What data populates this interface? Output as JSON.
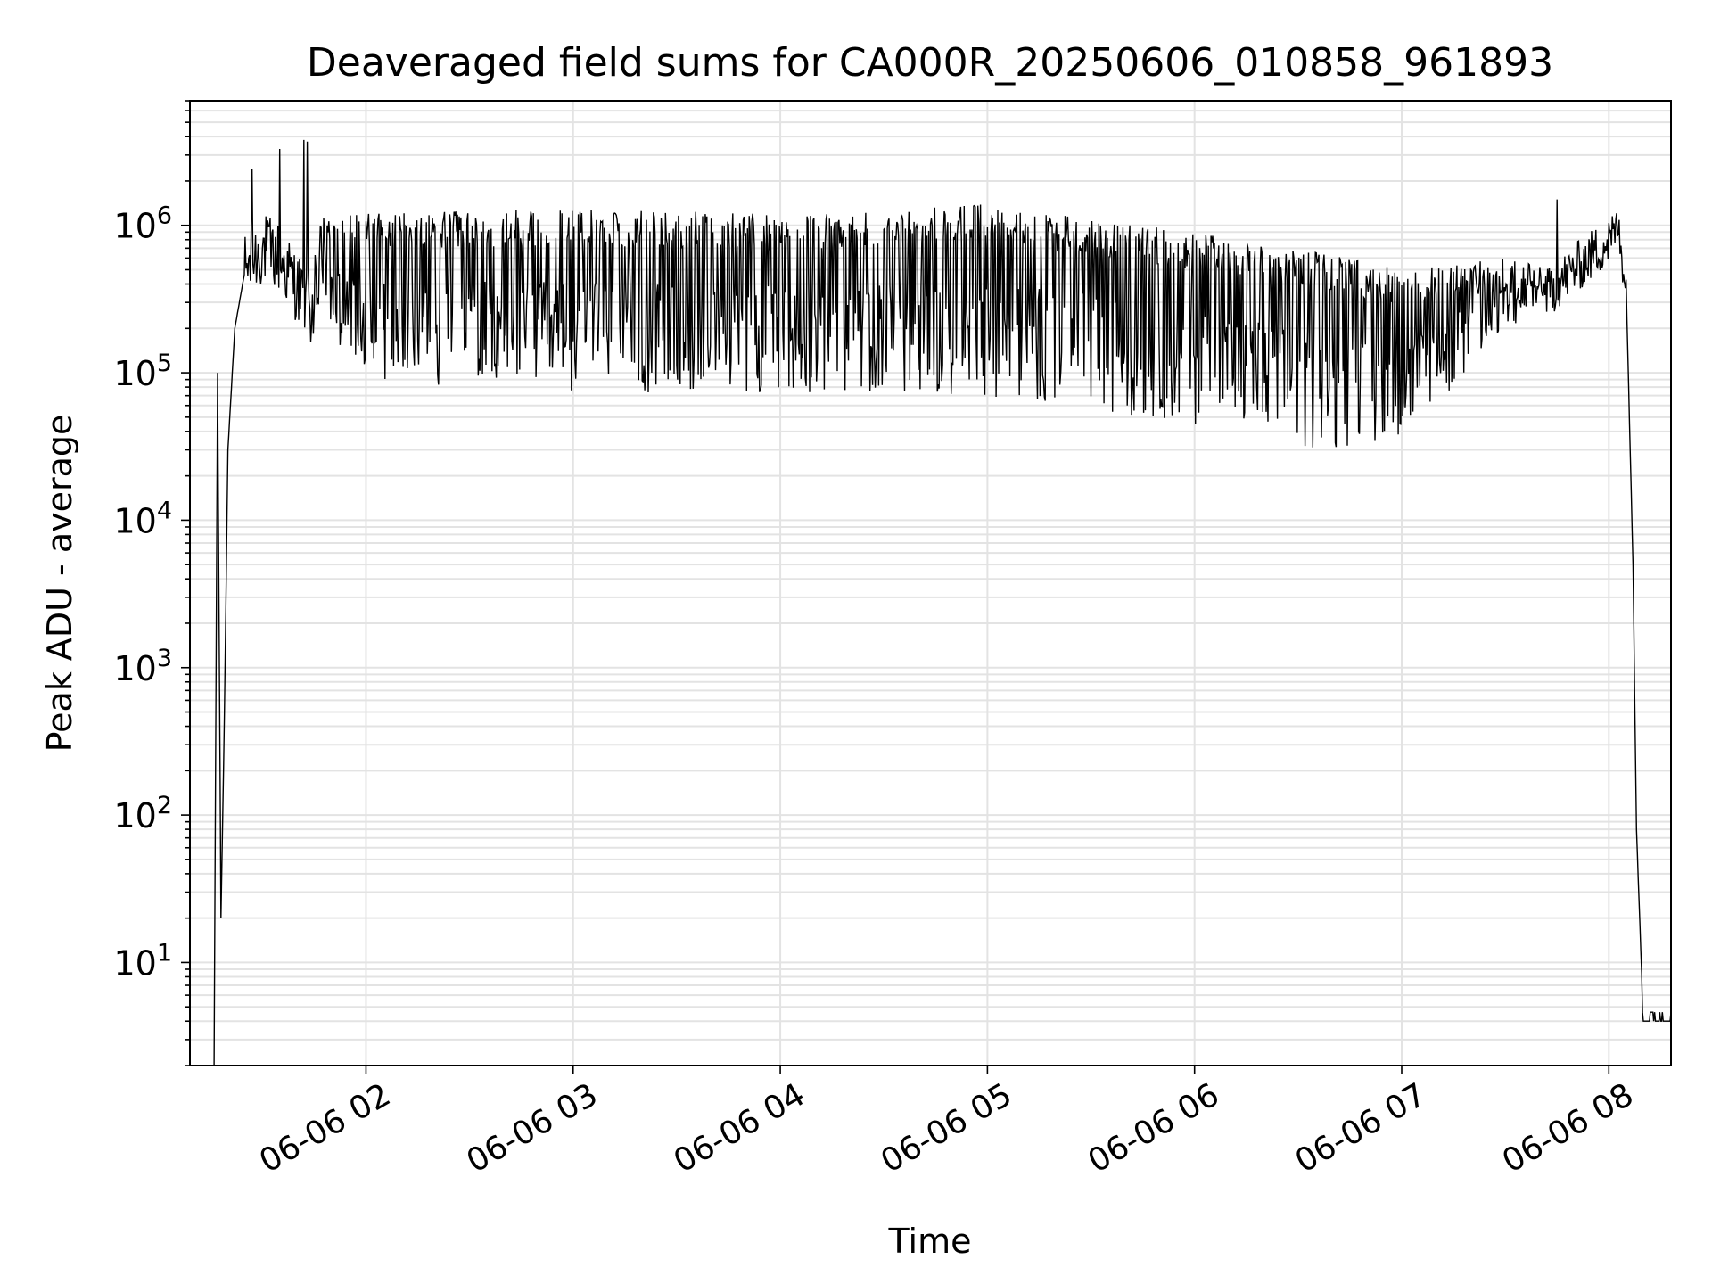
{
  "chart_data": {
    "type": "line",
    "title": "Deaveraged field sums for CA000R_20250606_010858_961893",
    "xlabel": "Time",
    "ylabel": "Peak ADU - average",
    "yscale": "log",
    "grid": true,
    "legend": "none",
    "line_color": "#000000",
    "xlim": [
      "2025-06-06 01:09",
      "2025-06-06 08:18"
    ],
    "ylim": [
      2.0,
      7000000
    ],
    "x_ticks": [
      {
        "t": "2025-06-06 02:00",
        "label": "06-06 02"
      },
      {
        "t": "2025-06-06 03:00",
        "label": "06-06 03"
      },
      {
        "t": "2025-06-06 04:00",
        "label": "06-06 04"
      },
      {
        "t": "2025-06-06 05:00",
        "label": "06-06 05"
      },
      {
        "t": "2025-06-06 06:00",
        "label": "06-06 06"
      },
      {
        "t": "2025-06-06 07:00",
        "label": "06-06 07"
      },
      {
        "t": "2025-06-06 08:00",
        "label": "06-06 08"
      }
    ],
    "y_ticks": [
      {
        "value": 10,
        "base": "10",
        "exp": "1"
      },
      {
        "value": 100,
        "base": "10",
        "exp": "2"
      },
      {
        "value": 1000,
        "base": "10",
        "exp": "3"
      },
      {
        "value": 10000,
        "base": "10",
        "exp": "4"
      },
      {
        "value": 100000,
        "base": "10",
        "exp": "5"
      },
      {
        "value": 1000000,
        "base": "10",
        "exp": "6"
      }
    ],
    "series": [
      {
        "baseline": [
          {
            "t": "2025-06-06 01:17",
            "v": 100000
          },
          {
            "t": "2025-06-06 01:18",
            "v": 20
          },
          {
            "t": "2025-06-06 01:19",
            "v": 500
          },
          {
            "t": "2025-06-06 01:20",
            "v": 30000
          },
          {
            "t": "2025-06-06 01:22",
            "v": 200000
          },
          {
            "t": "2025-06-06 01:25",
            "v": 500000
          },
          {
            "t": "2025-06-06 01:30",
            "v": 700000
          },
          {
            "t": "2025-06-06 01:35",
            "v": 600000
          },
          {
            "t": "2025-06-06 01:45",
            "v": 250000
          },
          {
            "t": "2025-06-06 02:00",
            "v": 90000
          },
          {
            "t": "2025-06-06 02:30",
            "v": 80000
          },
          {
            "t": "2025-06-06 03:30",
            "v": 70000
          },
          {
            "t": "2025-06-06 04:30",
            "v": 75000
          },
          {
            "t": "2025-06-06 05:15",
            "v": 65000
          },
          {
            "t": "2025-06-06 05:45",
            "v": 50000
          },
          {
            "t": "2025-06-06 06:15",
            "v": 40000
          },
          {
            "t": "2025-06-06 06:30",
            "v": 30000
          },
          {
            "t": "2025-06-06 06:50",
            "v": 28000
          },
          {
            "t": "2025-06-06 07:05",
            "v": 45000
          },
          {
            "t": "2025-06-06 07:25",
            "v": 130000
          },
          {
            "t": "2025-06-06 07:45",
            "v": 400000
          },
          {
            "t": "2025-06-06 08:03",
            "v": 900000
          },
          {
            "t": "2025-06-06 08:05",
            "v": 400000
          },
          {
            "t": "2025-06-06 08:07",
            "v": 5000
          },
          {
            "t": "2025-06-06 08:08",
            "v": 80
          },
          {
            "t": "2025-06-06 08:10",
            "v": 4
          },
          {
            "t": "2025-06-06 08:18",
            "v": 4
          }
        ],
        "envelope_top": [
          {
            "t": "2025-06-06 01:50",
            "v": 1200000
          },
          {
            "t": "2025-06-06 03:00",
            "v": 1300000
          },
          {
            "t": "2025-06-06 04:00",
            "v": 1200000
          },
          {
            "t": "2025-06-06 05:00",
            "v": 1400000
          },
          {
            "t": "2025-06-06 05:45",
            "v": 1000000
          },
          {
            "t": "2025-06-06 06:30",
            "v": 700000
          },
          {
            "t": "2025-06-06 07:00",
            "v": 500000
          },
          {
            "t": "2025-06-06 07:30",
            "v": 600000
          }
        ],
        "spikes": [
          {
            "t": "2025-06-06 01:27",
            "v": 2400000
          },
          {
            "t": "2025-06-06 01:35",
            "v": 3300000
          },
          {
            "t": "2025-06-06 01:42",
            "v": 3800000
          },
          {
            "t": "2025-06-06 01:43",
            "v": 3700000
          },
          {
            "t": "2025-06-06 07:45",
            "v": 1500000
          },
          {
            "t": "2025-06-06 08:02",
            "v": 1100000
          }
        ]
      }
    ]
  }
}
